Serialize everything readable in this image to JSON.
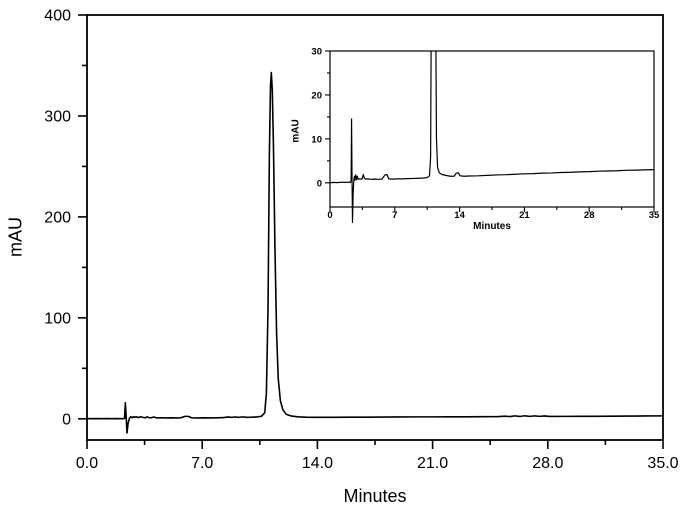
{
  "figure": {
    "background_color": "#ffffff",
    "line_color": "#000000",
    "text_color": "#000000"
  },
  "chart_data": [
    {
      "id": "main",
      "type": "line",
      "title": "",
      "xlabel": "Minutes",
      "ylabel": "mAU",
      "xlim": [
        0,
        35
      ],
      "ylim": [
        -21,
        400
      ],
      "grid": false,
      "legend": "none",
      "xticks": {
        "major": [
          0,
          7,
          14,
          21,
          28,
          35
        ],
        "minor": [
          3.5,
          10.5,
          17.5,
          24.5,
          31.5
        ],
        "labels": [
          "0.0",
          "7.0",
          "14.0",
          "21.0",
          "28.0",
          "35.0"
        ]
      },
      "yticks": {
        "major": [
          0,
          100,
          200,
          300,
          400
        ],
        "minor": [
          50,
          150,
          250,
          350
        ],
        "labels": [
          "0",
          "100",
          "200",
          "300",
          "400"
        ]
      },
      "main_peak": {
        "retention_time_min": 11.2,
        "height_mAU": 343
      },
      "injection_disturbance": {
        "time_min": 2.4,
        "up_mAU": 16,
        "down_mAU": -14
      },
      "points": [
        [
          0,
          0.2
        ],
        [
          0.3,
          0.1
        ],
        [
          0.6,
          0.2
        ],
        [
          0.9,
          0.1
        ],
        [
          1.2,
          0.2
        ],
        [
          1.5,
          0.1
        ],
        [
          1.8,
          0.2
        ],
        [
          2.1,
          0.1
        ],
        [
          2.28,
          0.3
        ],
        [
          2.33,
          16
        ],
        [
          2.38,
          2
        ],
        [
          2.43,
          -14
        ],
        [
          2.5,
          -4
        ],
        [
          2.58,
          0.5
        ],
        [
          2.66,
          2.2
        ],
        [
          2.74,
          1.0
        ],
        [
          2.82,
          2.0
        ],
        [
          2.9,
          1.6
        ],
        [
          3.0,
          2.0
        ],
        [
          3.1,
          1.2
        ],
        [
          3.25,
          2.0
        ],
        [
          3.4,
          1.4
        ],
        [
          3.55,
          1.0
        ],
        [
          3.65,
          2.0
        ],
        [
          3.75,
          1.2
        ],
        [
          3.9,
          1.0
        ],
        [
          4.05,
          1.8
        ],
        [
          4.2,
          1.0
        ],
        [
          4.5,
          1.0
        ],
        [
          4.8,
          0.9
        ],
        [
          5.1,
          1.0
        ],
        [
          5.4,
          0.9
        ],
        [
          5.7,
          1.0
        ],
        [
          5.95,
          2.4
        ],
        [
          6.15,
          2.4
        ],
        [
          6.35,
          1.0
        ],
        [
          6.7,
          0.9
        ],
        [
          7.1,
          1.0
        ],
        [
          7.5,
          0.9
        ],
        [
          7.9,
          1.0
        ],
        [
          8.3,
          1.2
        ],
        [
          8.6,
          1.8
        ],
        [
          8.8,
          1.4
        ],
        [
          9.0,
          1.9
        ],
        [
          9.2,
          1.4
        ],
        [
          9.45,
          1.9
        ],
        [
          9.7,
          1.5
        ],
        [
          10.0,
          1.6
        ],
        [
          10.3,
          1.8
        ],
        [
          10.6,
          2.5
        ],
        [
          10.8,
          6
        ],
        [
          10.9,
          25
        ],
        [
          11.0,
          110
        ],
        [
          11.08,
          260
        ],
        [
          11.15,
          330
        ],
        [
          11.2,
          343
        ],
        [
          11.26,
          325
        ],
        [
          11.33,
          270
        ],
        [
          11.42,
          170
        ],
        [
          11.52,
          85
        ],
        [
          11.62,
          40
        ],
        [
          11.75,
          18
        ],
        [
          11.9,
          9
        ],
        [
          12.1,
          4.5
        ],
        [
          12.4,
          2.8
        ],
        [
          12.8,
          2.0
        ],
        [
          13.3,
          1.6
        ],
        [
          14,
          1.5
        ],
        [
          15,
          1.5
        ],
        [
          16,
          1.6
        ],
        [
          17,
          1.6
        ],
        [
          18,
          1.7
        ],
        [
          19,
          1.8
        ],
        [
          20,
          1.9
        ],
        [
          21,
          1.9
        ],
        [
          22,
          2.0
        ],
        [
          23,
          2.0
        ],
        [
          24,
          2.1
        ],
        [
          25,
          2.2
        ],
        [
          25.4,
          2.6
        ],
        [
          25.7,
          2.2
        ],
        [
          26.0,
          2.9
        ],
        [
          26.3,
          2.3
        ],
        [
          26.6,
          3.0
        ],
        [
          26.9,
          2.4
        ],
        [
          27.2,
          2.9
        ],
        [
          27.5,
          2.4
        ],
        [
          27.8,
          2.8
        ],
        [
          28.1,
          2.3
        ],
        [
          29,
          2.4
        ],
        [
          30,
          2.5
        ],
        [
          31,
          2.5
        ],
        [
          32,
          2.6
        ],
        [
          33,
          2.7
        ],
        [
          34,
          2.8
        ],
        [
          35,
          2.9
        ]
      ]
    },
    {
      "id": "inset",
      "type": "line",
      "title": "",
      "xlabel": "Minutes",
      "ylabel": "mAU",
      "xlim": [
        0,
        35
      ],
      "ylim": [
        -5.5,
        30
      ],
      "grid": false,
      "legend": "none",
      "xticks": {
        "major": [
          0,
          7,
          14,
          21,
          28,
          35
        ],
        "minor": [
          3.5,
          10.5,
          17.5,
          24.5,
          31.5
        ],
        "labels": [
          "0",
          "7",
          "14",
          "21",
          "28",
          "35"
        ]
      },
      "yticks": {
        "major": [
          0,
          10,
          20,
          30
        ],
        "minor": [
          5,
          15,
          25
        ],
        "labels": [
          "0",
          "10",
          "20",
          "30"
        ]
      },
      "main_peak": {
        "retention_time_min": 11.2,
        "clipped_at_mAU": 30
      },
      "injection_disturbance": {
        "time_min": 2.4,
        "up_mAU": 14.5,
        "down_mAU": -9
      },
      "baseline_drift": {
        "start_mAU": 0,
        "end_mAU": 3.0
      },
      "points": [
        [
          0,
          0.0
        ],
        [
          0.4,
          0.1
        ],
        [
          0.8,
          0.05
        ],
        [
          1.2,
          0.15
        ],
        [
          1.6,
          0.1
        ],
        [
          2.0,
          0.15
        ],
        [
          2.2,
          0.1
        ],
        [
          2.28,
          0.5
        ],
        [
          2.33,
          14.5
        ],
        [
          2.38,
          1
        ],
        [
          2.43,
          -9
        ],
        [
          2.5,
          -2.5
        ],
        [
          2.56,
          0.2
        ],
        [
          2.64,
          1.5
        ],
        [
          2.7,
          0.6
        ],
        [
          2.78,
          1.8
        ],
        [
          2.86,
          0.7
        ],
        [
          2.95,
          1.5
        ],
        [
          3.05,
          0.8
        ],
        [
          3.2,
          0.9
        ],
        [
          3.45,
          0.8
        ],
        [
          3.6,
          1.9
        ],
        [
          3.7,
          1.1
        ],
        [
          3.85,
          0.85
        ],
        [
          4.1,
          0.9
        ],
        [
          4.4,
          0.8
        ],
        [
          4.8,
          0.85
        ],
        [
          5.2,
          0.8
        ],
        [
          5.6,
          0.85
        ],
        [
          5.95,
          1.8
        ],
        [
          6.15,
          1.9
        ],
        [
          6.35,
          0.9
        ],
        [
          6.7,
          0.85
        ],
        [
          7.2,
          0.9
        ],
        [
          7.8,
          0.9
        ],
        [
          8.4,
          0.95
        ],
        [
          9.0,
          1.0
        ],
        [
          9.6,
          1.05
        ],
        [
          10.1,
          1.1
        ],
        [
          10.5,
          1.2
        ],
        [
          10.75,
          1.6
        ],
        [
          10.87,
          6
        ],
        [
          10.95,
          45
        ],
        [
          11.4,
          45
        ],
        [
          11.5,
          10
        ],
        [
          11.62,
          3.5
        ],
        [
          11.8,
          2.3
        ],
        [
          12.1,
          1.9
        ],
        [
          12.5,
          1.7
        ],
        [
          13.0,
          1.5
        ],
        [
          13.4,
          1.5
        ],
        [
          13.65,
          2.2
        ],
        [
          13.85,
          2.3
        ],
        [
          14.05,
          1.6
        ],
        [
          14.5,
          1.5
        ],
        [
          15,
          1.55
        ],
        [
          16,
          1.6
        ],
        [
          17,
          1.7
        ],
        [
          18,
          1.8
        ],
        [
          19,
          1.85
        ],
        [
          20,
          1.95
        ],
        [
          21,
          2.05
        ],
        [
          22,
          2.1
        ],
        [
          23,
          2.2
        ],
        [
          24,
          2.25
        ],
        [
          25,
          2.35
        ],
        [
          26,
          2.4
        ],
        [
          27,
          2.5
        ],
        [
          28,
          2.55
        ],
        [
          29,
          2.65
        ],
        [
          30,
          2.7
        ],
        [
          31,
          2.75
        ],
        [
          32,
          2.85
        ],
        [
          33,
          2.9
        ],
        [
          34,
          2.95
        ],
        [
          35,
          3.0
        ]
      ]
    }
  ]
}
